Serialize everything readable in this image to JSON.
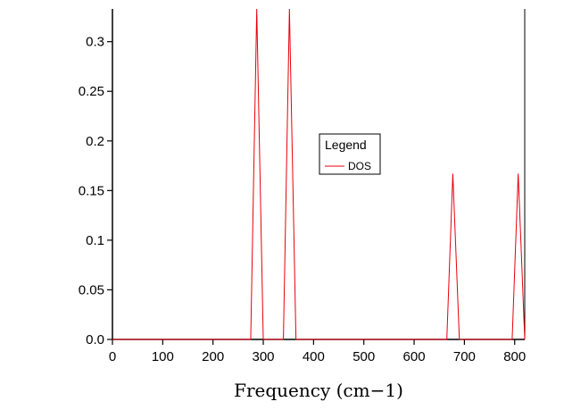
{
  "chart_data": {
    "type": "line",
    "xlabel": "Frequency (cm−1)",
    "ylabel": "",
    "xlim": [
      0,
      820
    ],
    "ylim": [
      0,
      0.333
    ],
    "x_ticks": [
      0,
      100,
      200,
      300,
      400,
      500,
      600,
      700,
      800
    ],
    "x_tick_labels": [
      "0",
      "100",
      "200",
      "300",
      "400",
      "500",
      "600",
      "700",
      "800"
    ],
    "y_ticks": [
      0,
      0.05,
      0.1,
      0.15,
      0.2,
      0.25,
      0.3
    ],
    "y_tick_labels": [
      "0.0",
      "0.05",
      "0.1",
      "0.15",
      "0.2",
      "0.25",
      "0.3"
    ],
    "grid": false,
    "legend": {
      "title": "Legend",
      "placement": "center",
      "entries": [
        {
          "name": "DOS",
          "color": "#e8000b"
        }
      ]
    },
    "series": [
      {
        "name": "DOS",
        "color": "#e8000b",
        "x": [
          0,
          275,
          287,
          300,
          340,
          352,
          365,
          665,
          677,
          690,
          795,
          807,
          820
        ],
        "y": [
          0,
          0,
          0.333,
          0,
          0,
          0.333,
          0,
          0,
          0.167,
          0,
          0,
          0.167,
          0
        ]
      }
    ]
  }
}
